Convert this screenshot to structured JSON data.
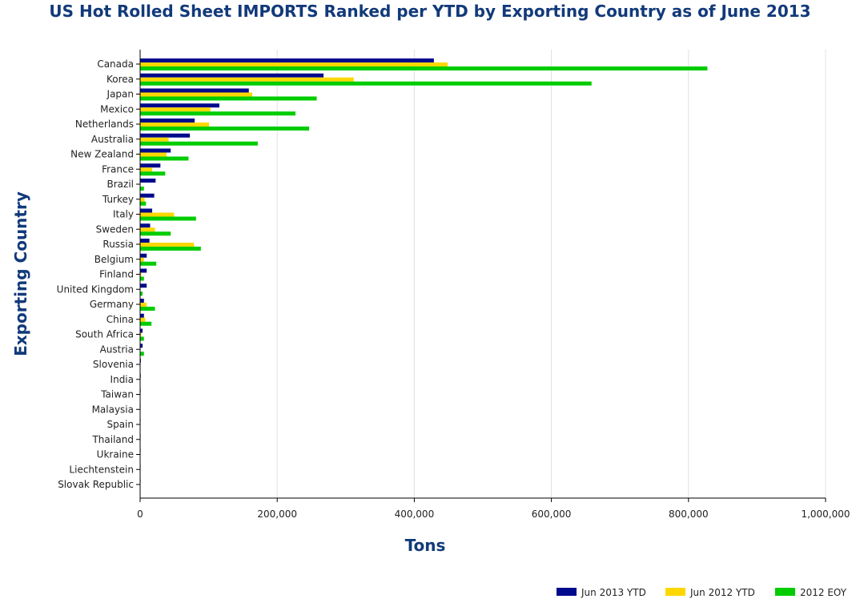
{
  "chart_data": {
    "type": "bar",
    "orientation": "horizontal",
    "title": "US Hot Rolled Sheet IMPORTS Ranked per YTD by Exporting Country as of June 2013",
    "xlabel": "Tons",
    "ylabel": "Exporting Country",
    "xlim": [
      0,
      1000000
    ],
    "xticks": [
      0,
      200000,
      400000,
      600000,
      800000,
      1000000
    ],
    "xtick_labels": [
      "0",
      "200,000",
      "400,000",
      "600,000",
      "800,000",
      "1,000,000"
    ],
    "grid": true,
    "legend_position": "bottom-right",
    "categories": [
      "Canada",
      "Korea",
      "Japan",
      "Mexico",
      "Netherlands",
      "Australia",
      "New Zealand",
      "France",
      "Brazil",
      "Turkey",
      "Italy",
      "Sweden",
      "Russia",
      "Belgium",
      "Finland",
      "United Kingdom",
      "Germany",
      "China",
      "South Africa",
      "Austria",
      "Slovenia",
      "India",
      "Taiwan",
      "Malaysia",
      "Spain",
      "Thailand",
      "Ukraine",
      "Liechtenstein",
      "Slovak Republic"
    ],
    "series": [
      {
        "name": "Jun 2013 YTD",
        "color": "#000a8c",
        "values": [
          428000,
          267000,
          158000,
          115000,
          79000,
          72000,
          44000,
          29000,
          22000,
          20000,
          17000,
          14000,
          13000,
          9000,
          9000,
          9000,
          5000,
          5000,
          3000,
          3000,
          500,
          300,
          200,
          100,
          100,
          100,
          100,
          100,
          100
        ]
      },
      {
        "name": "Jun 2012 YTD",
        "color": "#ffd700",
        "values": [
          448000,
          311000,
          163000,
          102000,
          100000,
          41000,
          38000,
          17000,
          0,
          6000,
          49000,
          21000,
          78000,
          5000,
          1000,
          0,
          9000,
          7000,
          1000,
          0,
          0,
          0,
          0,
          0,
          0,
          0,
          0,
          0,
          0
        ]
      },
      {
        "name": "2012 EOY",
        "color": "#00cc00",
        "values": [
          827000,
          658000,
          257000,
          226000,
          246000,
          171000,
          70000,
          36000,
          5000,
          8000,
          81000,
          44000,
          88000,
          23000,
          5000,
          3000,
          21000,
          16000,
          5000,
          5000,
          0,
          0,
          0,
          0,
          0,
          0,
          0,
          0,
          0
        ]
      }
    ]
  }
}
